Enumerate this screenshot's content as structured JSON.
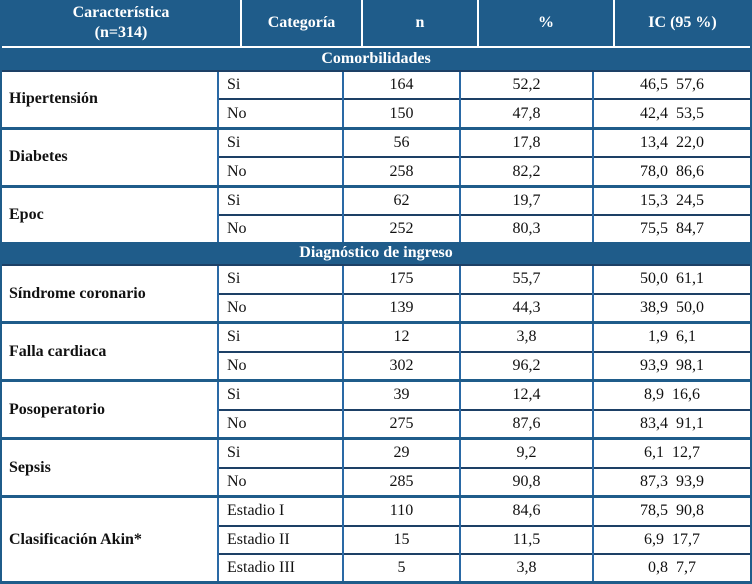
{
  "colors": {
    "header_bg": "#1f5c8a",
    "vertical_border": "#2a69a5",
    "thin_border": "#1d4066",
    "text": "#111111"
  },
  "table": {
    "header": {
      "caracteristica_line1": "Característica",
      "caracteristica_line2": "(n=314)",
      "categoria": "Categoría",
      "n": "n",
      "pct": "%",
      "ic": "IC (95 %)"
    },
    "sections": [
      {
        "title": "Comorbilidades",
        "groups": [
          {
            "name": "Hipertensión",
            "rows": [
              {
                "category": "Si",
                "n": "164",
                "pct": "52,2",
                "ic": "46,5  57,6"
              },
              {
                "category": "No",
                "n": "150",
                "pct": "47,8",
                "ic": "42,4  53,5"
              }
            ]
          },
          {
            "name": "Diabetes",
            "rows": [
              {
                "category": "Si",
                "n": "56",
                "pct": "17,8",
                "ic": "13,4  22,0"
              },
              {
                "category": "No",
                "n": "258",
                "pct": "82,2",
                "ic": "78,0  86,6"
              }
            ]
          },
          {
            "name": "Epoc",
            "rows": [
              {
                "category": "Si",
                "n": "62",
                "pct": "19,7",
                "ic": "15,3  24,5"
              },
              {
                "category": "No",
                "n": "252",
                "pct": "80,3",
                "ic": "75,5  84,7"
              }
            ]
          }
        ]
      },
      {
        "title": "Diagnóstico de ingreso",
        "groups": [
          {
            "name": "Síndrome coronario",
            "rows": [
              {
                "category": "Si",
                "n": "175",
                "pct": "55,7",
                "ic": "50,0  61,1"
              },
              {
                "category": "No",
                "n": "139",
                "pct": "44,3",
                "ic": "38,9  50,0"
              }
            ]
          },
          {
            "name": "Falla cardiaca",
            "rows": [
              {
                "category": "Si",
                "n": "12",
                "pct": "3,8",
                "ic": "1,9  6,1"
              },
              {
                "category": "No",
                "n": "302",
                "pct": "96,2",
                "ic": "93,9  98,1"
              }
            ]
          },
          {
            "name": "Posoperatorio",
            "rows": [
              {
                "category": "Si",
                "n": "39",
                "pct": "12,4",
                "ic": "8,9  16,6"
              },
              {
                "category": "No",
                "n": "275",
                "pct": "87,6",
                "ic": "83,4  91,1"
              }
            ]
          },
          {
            "name": "Sepsis",
            "rows": [
              {
                "category": "Si",
                "n": "29",
                "pct": "9,2",
                "ic": "6,1  12,7"
              },
              {
                "category": "No",
                "n": "285",
                "pct": "90,8",
                "ic": "87,3  93,9"
              }
            ]
          },
          {
            "name": "Clasificación Akin*",
            "rows": [
              {
                "category": "Estadio I",
                "n": "110",
                "pct": "84,6",
                "ic": "78,5  90,8"
              },
              {
                "category": "Estadio II",
                "n": "15",
                "pct": "11,5",
                "ic": "6,9  17,7"
              },
              {
                "category": "Estadio III",
                "n": "5",
                "pct": "3,8",
                "ic": "0,8  7,7"
              }
            ]
          }
        ]
      }
    ]
  }
}
